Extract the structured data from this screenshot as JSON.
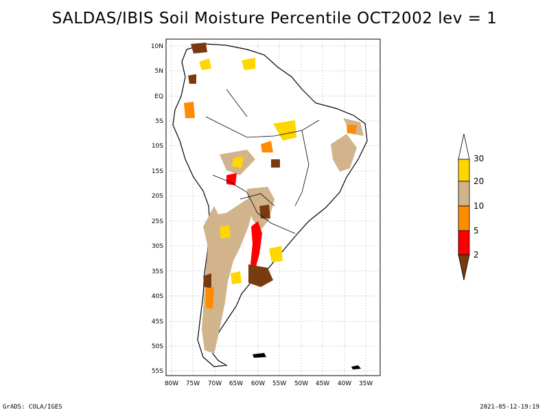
{
  "title": "SALDAS/IBIS Soil Moisture Percentile OCT2002 lev = 1",
  "footer": {
    "left": "GrADS: COLA/IGES",
    "right": "2021-05-12-19:19"
  },
  "map": {
    "lat_labels": [
      "10N",
      "5N",
      "EQ",
      "5S",
      "10S",
      "15S",
      "20S",
      "25S",
      "30S",
      "35S",
      "40S",
      "45S",
      "50S",
      "55S"
    ],
    "lon_labels": [
      "80W",
      "75W",
      "70W",
      "65W",
      "60W",
      "55W",
      "50W",
      "45W",
      "40W",
      "35W"
    ]
  },
  "legend": {
    "labels": [
      "2",
      "5",
      "10",
      "20",
      "30"
    ],
    "colors": {
      "lt2": "#7a3a10",
      "2to5": "#ff0000",
      "5to10": "#ff8c00",
      "10to20": "#d2b48c",
      "20to30": "#ffd700",
      "gt30": "#ffffff"
    }
  }
}
